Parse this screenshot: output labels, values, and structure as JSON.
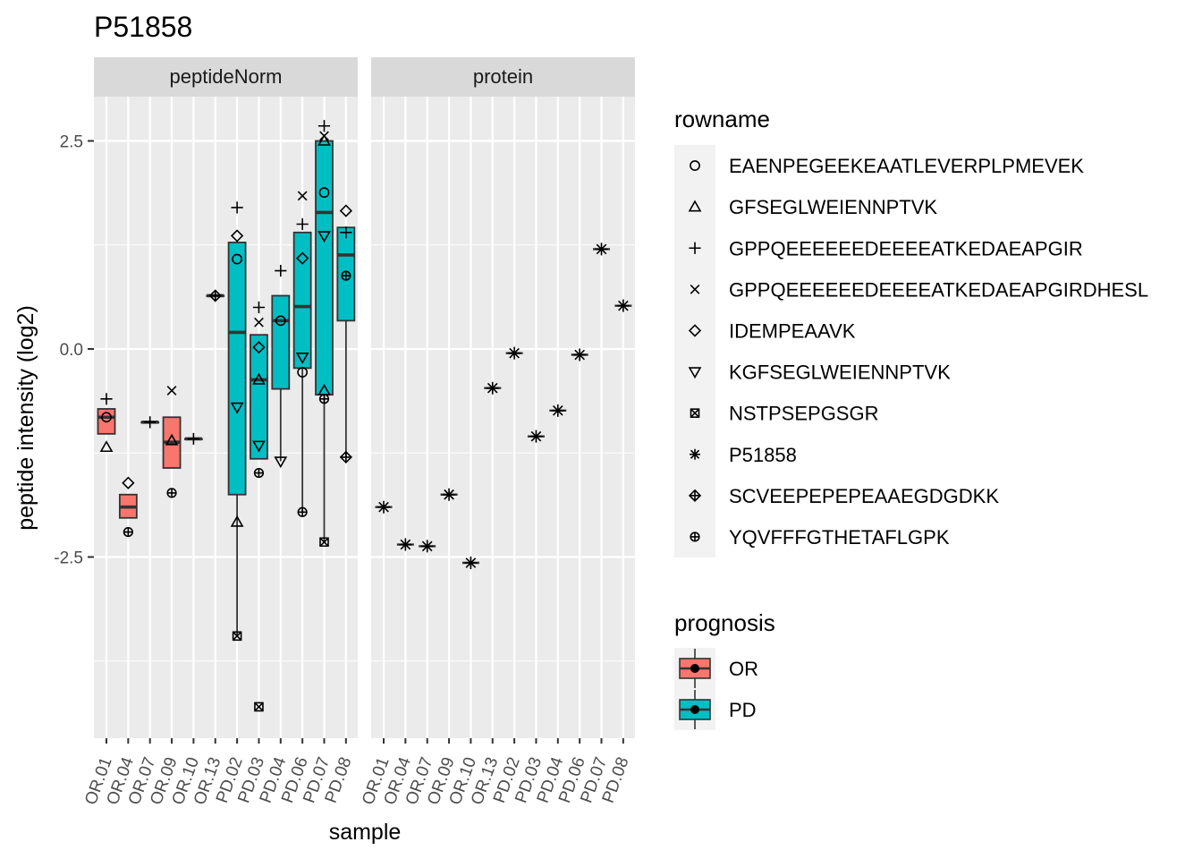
{
  "chart_data": {
    "type": "boxplot",
    "title": "P51858",
    "xlabel": "sample",
    "ylabel": "peptide intensity (log2)",
    "y_ticks": [
      2.5,
      0.0,
      -2.5
    ],
    "y_tick_labels": [
      "2.5",
      "0.0",
      "-2.5"
    ],
    "ylim": [
      -4.65,
      3.2
    ],
    "categories": [
      "OR.01",
      "OR.04",
      "OR.07",
      "OR.09",
      "OR.10",
      "OR.13",
      "PD.02",
      "PD.03",
      "PD.04",
      "PD.06",
      "PD.07",
      "PD.08"
    ],
    "panels": [
      "peptideNorm",
      "protein"
    ],
    "colors": {
      "OR": "#F8766D",
      "PD": "#00BFC4",
      "panel_bg": "#EBEBEB",
      "strip_bg": "#D9D9D9",
      "grid": "#FFFFFF"
    },
    "legend_position": "right",
    "legend_rowname": {
      "title": "rowname",
      "items": [
        {
          "label": "EAENPEGEEKEAATLEVERPLPMEVEK",
          "shape": "circle"
        },
        {
          "label": "GFSEGLWEIENNPTVK",
          "shape": "triangle"
        },
        {
          "label": "GPPQEEEEEEDEEEEATKEDAEAPGIR",
          "shape": "plus"
        },
        {
          "label": "GPPQEEEEEEDEEEEATKEDAEAPGIRDHESL",
          "shape": "cross"
        },
        {
          "label": "IDEMPEAAVK",
          "shape": "diamond"
        },
        {
          "label": "KGFSEGLWEIENNPTVK",
          "shape": "triangle-down"
        },
        {
          "label": "NSTPSEPGSGR",
          "shape": "square-x"
        },
        {
          "label": "P51858",
          "shape": "asterisk"
        },
        {
          "label": "SCVEEPEPEPEAAEGDGDKK",
          "shape": "diamond-plus"
        },
        {
          "label": "YQVFFFGTHETAFLGPK",
          "shape": "circle-plus"
        }
      ]
    },
    "legend_prognosis": {
      "title": "prognosis",
      "items": [
        {
          "label": "OR",
          "group": "OR"
        },
        {
          "label": "PD",
          "group": "PD"
        }
      ]
    },
    "peptideNorm": {
      "boxes": [
        {
          "sample": "OR.01",
          "group": "OR",
          "q1": -1.02,
          "median": -0.82,
          "q3": -0.72,
          "lower": -1.02,
          "upper": -0.72
        },
        {
          "sample": "OR.04",
          "group": "OR",
          "q1": -2.03,
          "median": -1.9,
          "q3": -1.75,
          "lower": -2.03,
          "upper": -1.75
        },
        {
          "sample": "OR.07",
          "group": "OR",
          "q1": -0.88,
          "median": -0.88,
          "q3": -0.88,
          "lower": -0.88,
          "upper": -0.88
        },
        {
          "sample": "OR.09",
          "group": "OR",
          "q1": -1.43,
          "median": -1.12,
          "q3": -0.82,
          "lower": -1.43,
          "upper": -0.82
        },
        {
          "sample": "OR.10",
          "group": "OR",
          "q1": -1.08,
          "median": -1.08,
          "q3": -1.08,
          "lower": -1.08,
          "upper": -1.08
        },
        {
          "sample": "OR.13",
          "group": "OR",
          "q1": 0.64,
          "median": 0.64,
          "q3": 0.64,
          "lower": 0.64,
          "upper": 0.64
        },
        {
          "sample": "PD.02",
          "group": "PD",
          "q1": -1.75,
          "median": 0.2,
          "q3": 1.28,
          "lower": -3.45,
          "upper": 1.28
        },
        {
          "sample": "PD.03",
          "group": "PD",
          "q1": -1.32,
          "median": -0.37,
          "q3": 0.17,
          "lower": -1.32,
          "upper": 0.17
        },
        {
          "sample": "PD.04",
          "group": "PD",
          "q1": -0.48,
          "median": 0.34,
          "q3": 0.64,
          "lower": -1.35,
          "upper": 0.64
        },
        {
          "sample": "PD.06",
          "group": "PD",
          "q1": -0.23,
          "median": 0.51,
          "q3": 1.4,
          "lower": -1.96,
          "upper": 1.4
        },
        {
          "sample": "PD.07",
          "group": "PD",
          "q1": -0.55,
          "median": 1.64,
          "q3": 2.5,
          "lower": -2.32,
          "upper": 2.5
        },
        {
          "sample": "PD.08",
          "group": "PD",
          "q1": 0.34,
          "median": 1.13,
          "q3": 1.46,
          "lower": -1.3,
          "upper": 1.46
        }
      ],
      "points": [
        {
          "sample": "OR.01",
          "shape": "circle",
          "y": -0.82
        },
        {
          "sample": "OR.01",
          "shape": "triangle",
          "y": -1.18
        },
        {
          "sample": "OR.01",
          "shape": "plus",
          "y": -0.6
        },
        {
          "sample": "OR.04",
          "shape": "diamond",
          "y": -1.61
        },
        {
          "sample": "OR.04",
          "shape": "circle-plus",
          "y": -2.2
        },
        {
          "sample": "OR.07",
          "shape": "plus",
          "y": -0.88
        },
        {
          "sample": "OR.09",
          "shape": "cross",
          "y": -0.5
        },
        {
          "sample": "OR.09",
          "shape": "triangle",
          "y": -1.1
        },
        {
          "sample": "OR.09",
          "shape": "circle-plus",
          "y": -1.73
        },
        {
          "sample": "OR.10",
          "shape": "plus",
          "y": -1.08
        },
        {
          "sample": "OR.13",
          "shape": "diamond-plus",
          "y": 0.64
        },
        {
          "sample": "PD.02",
          "shape": "plus",
          "y": 1.7
        },
        {
          "sample": "PD.02",
          "shape": "diamond",
          "y": 1.36
        },
        {
          "sample": "PD.02",
          "shape": "circle",
          "y": 1.08
        },
        {
          "sample": "PD.02",
          "shape": "triangle-down",
          "y": -0.7
        },
        {
          "sample": "PD.02",
          "shape": "triangle",
          "y": -2.08
        },
        {
          "sample": "PD.02",
          "shape": "square-x",
          "y": -3.45
        },
        {
          "sample": "PD.03",
          "shape": "plus",
          "y": 0.5
        },
        {
          "sample": "PD.03",
          "shape": "cross",
          "y": 0.32
        },
        {
          "sample": "PD.03",
          "shape": "diamond",
          "y": 0.02
        },
        {
          "sample": "PD.03",
          "shape": "triangle",
          "y": -0.37
        },
        {
          "sample": "PD.03",
          "shape": "triangle-down",
          "y": -1.16
        },
        {
          "sample": "PD.03",
          "shape": "circle-plus",
          "y": -1.49
        },
        {
          "sample": "PD.03",
          "shape": "square-x",
          "y": -4.3
        },
        {
          "sample": "PD.04",
          "shape": "plus",
          "y": 0.94
        },
        {
          "sample": "PD.04",
          "shape": "circle",
          "y": 0.34
        },
        {
          "sample": "PD.04",
          "shape": "triangle-down",
          "y": -1.35
        },
        {
          "sample": "PD.06",
          "shape": "cross",
          "y": 1.84
        },
        {
          "sample": "PD.06",
          "shape": "plus",
          "y": 1.5
        },
        {
          "sample": "PD.06",
          "shape": "diamond",
          "y": 1.09
        },
        {
          "sample": "PD.06",
          "shape": "triangle-down",
          "y": -0.1
        },
        {
          "sample": "PD.06",
          "shape": "circle",
          "y": -0.28
        },
        {
          "sample": "PD.06",
          "shape": "circle-plus",
          "y": -1.96
        },
        {
          "sample": "PD.07",
          "shape": "plus",
          "y": 2.68
        },
        {
          "sample": "PD.07",
          "shape": "cross",
          "y": 2.56
        },
        {
          "sample": "PD.07",
          "shape": "triangle",
          "y": 2.5
        },
        {
          "sample": "PD.07",
          "shape": "circle",
          "y": 1.88
        },
        {
          "sample": "PD.07",
          "shape": "triangle-down",
          "y": 1.36
        },
        {
          "sample": "PD.07",
          "shape": "triangle",
          "y": -0.5
        },
        {
          "sample": "PD.07",
          "shape": "circle-plus",
          "y": -0.6
        },
        {
          "sample": "PD.07",
          "shape": "square-x",
          "y": -2.32
        },
        {
          "sample": "PD.08",
          "shape": "diamond",
          "y": 1.66
        },
        {
          "sample": "PD.08",
          "shape": "plus",
          "y": 1.4
        },
        {
          "sample": "PD.08",
          "shape": "circle-plus",
          "y": 0.88
        },
        {
          "sample": "PD.08",
          "shape": "diamond-plus",
          "y": -1.3
        }
      ]
    },
    "protein": {
      "points": [
        {
          "sample": "OR.01",
          "y": -1.9
        },
        {
          "sample": "OR.04",
          "y": -2.35
        },
        {
          "sample": "OR.07",
          "y": -2.37
        },
        {
          "sample": "OR.09",
          "y": -1.75
        },
        {
          "sample": "OR.10",
          "y": -2.57
        },
        {
          "sample": "OR.13",
          "y": -0.47
        },
        {
          "sample": "PD.02",
          "y": -0.05
        },
        {
          "sample": "PD.03",
          "y": -1.05
        },
        {
          "sample": "PD.04",
          "y": -0.74
        },
        {
          "sample": "PD.06",
          "y": -0.07
        },
        {
          "sample": "PD.07",
          "y": 1.2
        },
        {
          "sample": "PD.08",
          "y": 0.52
        }
      ]
    }
  }
}
